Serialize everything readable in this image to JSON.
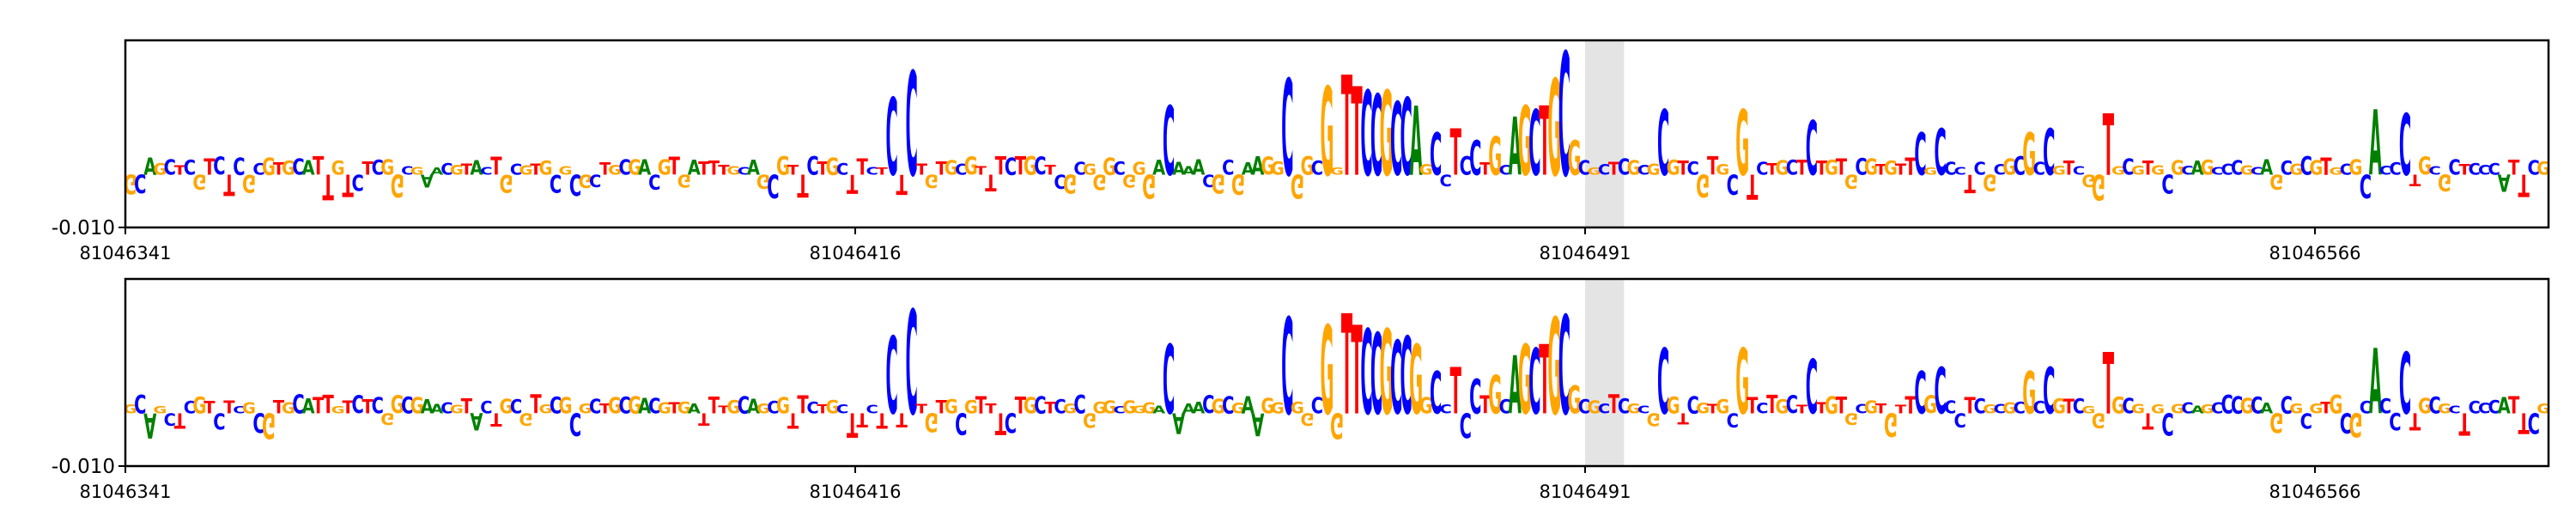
{
  "colors": {
    "A": "#008000",
    "C": "#0000ff",
    "G": "#ffa500",
    "T": "#ff0000",
    "highlight": "#e4e4e4",
    "frame": "#000000"
  },
  "chart_data": [
    {
      "type": "sequence-logo",
      "title": "",
      "xlabel": "",
      "ylabel": "",
      "xlim": [
        81046341,
        81046590
      ],
      "x_ticks": [
        81046341,
        81046416,
        81046491,
        81046566
      ],
      "x_tick_labels": [
        "81046341",
        "81046416",
        "81046491",
        "81046566"
      ],
      "y_ticks": [
        -0.01
      ],
      "y_tick_labels": [
        "-0.010"
      ],
      "ylim": [
        -0.013,
        0.014
      ],
      "highlight_range": [
        81046491,
        81046495
      ],
      "grid": false,
      "sequence": "GCAGCTCGTCTCGCGTGCATTGTCTCGGCGAACGTACTGCGTGCGCGCTGCGACGTGATTTGCAGCGTTCTGCTTCTCTCTGTGCGTTTCTGCTCGCGGGCGGGACAAACGCGAAGGCGGCGGTTCCGCCAGCCTCCTGCAGCTGCGCGCTCGCGCGTCGTGCGTCTGCTCTGTGCGTGTTCGCCCTCGCGCGCCGTCGGTGCGTGCGCAGCCCGCAGCGCGTGCGCACCCTGCGCTCCCATTCG"
    },
    {
      "type": "sequence-logo",
      "title": "",
      "xlabel": "",
      "ylabel": "",
      "xlim": [
        81046341,
        81046590
      ],
      "x_ticks": [
        81046341,
        81046416,
        81046491,
        81046566
      ],
      "x_tick_labels": [
        "81046341",
        "81046416",
        "81046491",
        "81046566"
      ],
      "y_ticks": [
        -0.01
      ],
      "y_tick_labels": [
        "-0.010"
      ],
      "ylim": [
        -0.013,
        0.014
      ],
      "highlight_range": [
        81046491,
        81046495
      ],
      "grid": false,
      "sequence": "GCAGCTCGTCTCGCGTGCATTGTCTCGGCGAACGTACTGCGTGCGCGCTGCGACGTGATTTGCAGCGTTCTGCTTCTCTCTGTGCGTTTCTGCTCGCGGGCGGGACAAACGCGAAGGCGGCGGTTCCGCCGGCCTCCTGCAGCTGCGCGCTCGCGCGTCGTGCGTCTGCTCTGTGCGTGTTCGCCCTCGCGCGCCGTCGGTGCGTGCGCAGCCCGCAGCGCGTGCGCACCCTGCGCTCCCATTCG"
    }
  ]
}
